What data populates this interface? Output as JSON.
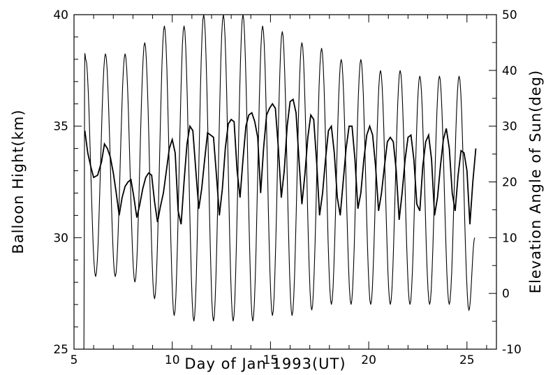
{
  "chart_data": {
    "type": "line",
    "xlabel": "Day of Jan 1993(UT)",
    "ylabel_left": "Balloon Hight(km)",
    "ylabel_right": "Elevation Angle of Sun(deg)",
    "xlim": [
      5,
      26.5
    ],
    "ylim_left": [
      25,
      40
    ],
    "ylim_right": [
      -10,
      50
    ],
    "x_ticks": [
      5,
      10,
      15,
      20,
      25
    ],
    "y_left_ticks": [
      25,
      30,
      35,
      40
    ],
    "y_right_ticks": [
      -10,
      0,
      10,
      20,
      30,
      40,
      50
    ],
    "grid": false,
    "series": [
      {
        "axis": "right",
        "style": "thin",
        "note_days": [
          5.55,
          6.6,
          7.6,
          8.6,
          9.6,
          10.6,
          11.6,
          12.6,
          13.6,
          14.6,
          15.6,
          16.6,
          17.6,
          18.6,
          19.6,
          20.6,
          21.6,
          22.6,
          23.6,
          24.6
        ],
        "x": [
          5.5,
          5.55,
          5.6,
          6.1,
          6.6,
          7.1,
          7.6,
          8.1,
          8.6,
          9.1,
          9.6,
          10.1,
          10.6,
          11.1,
          11.6,
          12.1,
          12.6,
          13.1,
          13.6,
          14.1,
          14.6,
          15.1,
          15.6,
          16.1,
          16.6,
          17.1,
          17.6,
          18.1,
          18.6,
          19.1,
          19.6,
          20.1,
          20.6,
          21.1,
          21.6,
          22.1,
          22.6,
          23.1,
          23.6,
          24.1,
          24.6,
          25.1,
          25.4
        ],
        "values": [
          -10,
          43,
          42,
          3,
          43,
          3,
          43,
          2,
          45,
          -1,
          48,
          -4,
          48,
          -5,
          50,
          -5,
          50,
          -5,
          50,
          -5,
          48,
          -4,
          47,
          -4,
          45,
          -3,
          44,
          -2,
          42,
          -2,
          42,
          -2,
          40,
          -2,
          40,
          -2,
          39,
          -2,
          39,
          -2,
          39,
          -3,
          10
        ]
      },
      {
        "axis": "left",
        "style": "thick",
        "x": [
          5.55,
          5.7,
          5.85,
          6.0,
          6.2,
          6.4,
          6.55,
          6.7,
          6.85,
          7.0,
          7.15,
          7.3,
          7.45,
          7.6,
          7.75,
          7.9,
          8.05,
          8.2,
          8.35,
          8.5,
          8.65,
          8.8,
          8.95,
          9.1,
          9.25,
          9.4,
          9.55,
          9.7,
          9.85,
          10.0,
          10.15,
          10.3,
          10.45,
          10.6,
          10.75,
          10.9,
          11.05,
          11.2,
          11.35,
          11.5,
          11.65,
          11.8,
          11.95,
          12.1,
          12.25,
          12.4,
          12.55,
          12.7,
          12.85,
          13.0,
          13.15,
          13.3,
          13.45,
          13.6,
          13.75,
          13.9,
          14.05,
          14.2,
          14.35,
          14.5,
          14.65,
          14.8,
          14.95,
          15.1,
          15.25,
          15.4,
          15.55,
          15.7,
          15.85,
          16.0,
          16.15,
          16.3,
          16.45,
          16.6,
          16.75,
          16.9,
          17.05,
          17.2,
          17.35,
          17.5,
          17.65,
          17.8,
          17.95,
          18.1,
          18.25,
          18.4,
          18.55,
          18.7,
          18.85,
          19.0,
          19.15,
          19.3,
          19.45,
          19.6,
          19.75,
          19.9,
          20.05,
          20.2,
          20.35,
          20.5,
          20.65,
          20.8,
          20.95,
          21.1,
          21.25,
          21.4,
          21.55,
          21.7,
          21.85,
          22.0,
          22.15,
          22.3,
          22.45,
          22.6,
          22.75,
          22.9,
          23.05,
          23.2,
          23.35,
          23.5,
          23.65,
          23.8,
          23.95,
          24.1,
          24.25,
          24.4,
          24.55,
          24.7,
          24.85,
          25.0,
          25.15,
          25.3,
          25.45
        ],
        "values": [
          34.8,
          33.8,
          33.2,
          32.7,
          32.8,
          33.4,
          34.2,
          34.0,
          33.6,
          32.9,
          32.0,
          31.0,
          31.8,
          32.3,
          32.5,
          32.6,
          31.8,
          30.9,
          31.5,
          32.2,
          32.7,
          32.9,
          32.8,
          31.6,
          30.7,
          31.4,
          32.0,
          33.0,
          34.0,
          34.4,
          33.8,
          31.2,
          30.6,
          32.5,
          34.2,
          35.0,
          34.8,
          33.0,
          31.3,
          32.2,
          33.5,
          34.7,
          34.6,
          34.5,
          32.8,
          31.0,
          32.2,
          34.0,
          35.1,
          35.3,
          35.2,
          33.0,
          31.8,
          33.5,
          35.0,
          35.5,
          35.6,
          35.2,
          34.5,
          32.0,
          34.0,
          35.5,
          35.8,
          36.0,
          35.8,
          34.0,
          31.8,
          33.0,
          35.0,
          36.1,
          36.2,
          35.6,
          33.5,
          31.5,
          32.8,
          34.5,
          35.5,
          35.3,
          33.4,
          31.0,
          32.0,
          33.5,
          34.8,
          35.0,
          33.8,
          31.8,
          31.0,
          32.5,
          34.0,
          35.0,
          35.0,
          33.5,
          31.3,
          32.0,
          33.5,
          34.6,
          35.0,
          34.6,
          33.2,
          31.2,
          32.0,
          33.2,
          34.3,
          34.5,
          34.3,
          33.0,
          30.8,
          32.0,
          33.5,
          34.5,
          34.6,
          33.5,
          31.5,
          31.2,
          33.2,
          34.3,
          34.6,
          33.5,
          31.0,
          31.8,
          33.2,
          34.4,
          34.9,
          34.0,
          32.0,
          31.2,
          32.8,
          33.9,
          33.8,
          33.0,
          30.6,
          32.5,
          34.0
        ]
      }
    ]
  }
}
